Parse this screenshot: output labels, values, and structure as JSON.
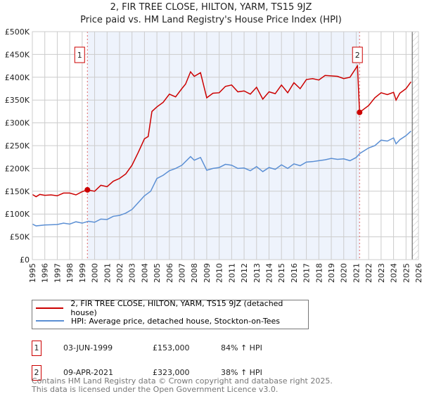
{
  "chart_data": {
    "type": "line",
    "title": "2, FIR TREE CLOSE, HILTON, YARM, TS15 9JZ",
    "subtitle": "Price paid vs. HM Land Registry's House Price Index (HPI)",
    "xlim": [
      1995,
      2026
    ],
    "ylim": [
      0,
      500000
    ],
    "x_ticks": [
      "1995",
      "1996",
      "1997",
      "1998",
      "1999",
      "2000",
      "2001",
      "2002",
      "2003",
      "2004",
      "2005",
      "2006",
      "2007",
      "2008",
      "2009",
      "2010",
      "2011",
      "2012",
      "2013",
      "2014",
      "2015",
      "2016",
      "2017",
      "2018",
      "2019",
      "2020",
      "2021",
      "2022",
      "2023",
      "2024",
      "2025",
      "2026"
    ],
    "y_ticks": [
      {
        "value": 0,
        "label": "£0"
      },
      {
        "value": 50000,
        "label": "£50K"
      },
      {
        "value": 100000,
        "label": "£100K"
      },
      {
        "value": 150000,
        "label": "£150K"
      },
      {
        "value": 200000,
        "label": "£200K"
      },
      {
        "value": 250000,
        "label": "£250K"
      },
      {
        "value": 300000,
        "label": "£300K"
      },
      {
        "value": 350000,
        "label": "£350K"
      },
      {
        "value": 400000,
        "label": "£400K"
      },
      {
        "value": 450000,
        "label": "£450K"
      },
      {
        "value": 500000,
        "label": "£500K"
      }
    ],
    "grid": true,
    "shaded_period": [
      1999.42,
      2021.27
    ],
    "future_hatch_from": 2025.5,
    "series": [
      {
        "name": "2, FIR TREE CLOSE, HILTON, YARM, TS15 9JZ (detached house)",
        "color": "#cc0000",
        "x": [
          1995,
          1995.3,
          1995.6,
          1996,
          1996.5,
          1997,
          1997.5,
          1998,
          1998.5,
          1999,
          1999.42,
          2000,
          2000.5,
          2001,
          2001.5,
          2002,
          2002.5,
          2003,
          2003.5,
          2004,
          2004.3,
          2004.6,
          2005,
          2005.5,
          2006,
          2006.5,
          2007,
          2007.3,
          2007.7,
          2008,
          2008.5,
          2009,
          2009.5,
          2010,
          2010.5,
          2011,
          2011.5,
          2012,
          2012.5,
          2013,
          2013.5,
          2014,
          2014.5,
          2015,
          2015.5,
          2016,
          2016.5,
          2017,
          2017.5,
          2018,
          2018.5,
          2019,
          2019.5,
          2020,
          2020.5,
          2021.1,
          2021.27,
          2022,
          2022.5,
          2023,
          2023.5,
          2024,
          2024.2,
          2024.5,
          2025,
          2025.4
        ],
        "y": [
          143000,
          138000,
          143000,
          141000,
          142000,
          140000,
          146000,
          146000,
          142000,
          149000,
          153000,
          150000,
          163000,
          160000,
          172000,
          178000,
          188000,
          207000,
          235000,
          265000,
          270000,
          325000,
          335000,
          345000,
          363000,
          357000,
          375000,
          385000,
          412000,
          402000,
          410000,
          355000,
          365000,
          366000,
          380000,
          383000,
          368000,
          370000,
          363000,
          378000,
          352000,
          368000,
          364000,
          383000,
          366000,
          388000,
          375000,
          395000,
          397000,
          394000,
          404000,
          403000,
          402000,
          397000,
          400000,
          425000,
          323000,
          338000,
          355000,
          366000,
          362000,
          367000,
          350000,
          365000,
          375000,
          390000
        ]
      },
      {
        "name": "HPI: Average price, detached house, Stockton-on-Tees",
        "color": "#5b8fd4",
        "x": [
          1995,
          1995.3,
          1996,
          1997,
          1997.5,
          1998,
          1998.5,
          1999,
          1999.5,
          2000,
          2000.5,
          2001,
          2001.5,
          2002,
          2002.5,
          2003,
          2003.5,
          2004,
          2004.5,
          2005,
          2005.5,
          2006,
          2006.5,
          2007,
          2007.7,
          2008,
          2008.5,
          2009,
          2009.5,
          2010,
          2010.5,
          2011,
          2011.5,
          2012,
          2012.5,
          2013,
          2013.5,
          2014,
          2014.5,
          2015,
          2015.5,
          2016,
          2016.5,
          2017,
          2017.5,
          2018,
          2018.5,
          2019,
          2019.5,
          2020,
          2020.5,
          2021,
          2021.3,
          2022,
          2022.5,
          2023,
          2023.5,
          2024,
          2024.2,
          2024.5,
          2025,
          2025.4
        ],
        "y": [
          78000,
          74000,
          76000,
          77000,
          80000,
          78000,
          83000,
          80000,
          84000,
          82000,
          89000,
          88000,
          95000,
          97000,
          102000,
          110000,
          125000,
          140000,
          150000,
          178000,
          185000,
          195000,
          200000,
          207000,
          226000,
          218000,
          224000,
          196000,
          200000,
          202000,
          209000,
          207000,
          200000,
          201000,
          195000,
          204000,
          193000,
          202000,
          198000,
          208000,
          200000,
          210000,
          206000,
          214000,
          215000,
          217000,
          219000,
          222000,
          220000,
          221000,
          217000,
          224000,
          233000,
          245000,
          250000,
          262000,
          260000,
          267000,
          254000,
          263000,
          272000,
          282000
        ]
      }
    ],
    "sales": [
      {
        "label": "1",
        "x": 1999.42,
        "price": 153000,
        "date": "03-JUN-1999",
        "price_text": "£153,000",
        "hpi_text": "84% ↑ HPI"
      },
      {
        "label": "2",
        "x": 2021.27,
        "price": 323000,
        "date": "09-APR-2021",
        "price_text": "£323,000",
        "hpi_text": "38% ↑ HPI"
      }
    ]
  },
  "footer": {
    "line1": "Contains HM Land Registry data © Crown copyright and database right 2025.",
    "line2": "This data is licensed under the Open Government Licence v3.0."
  }
}
